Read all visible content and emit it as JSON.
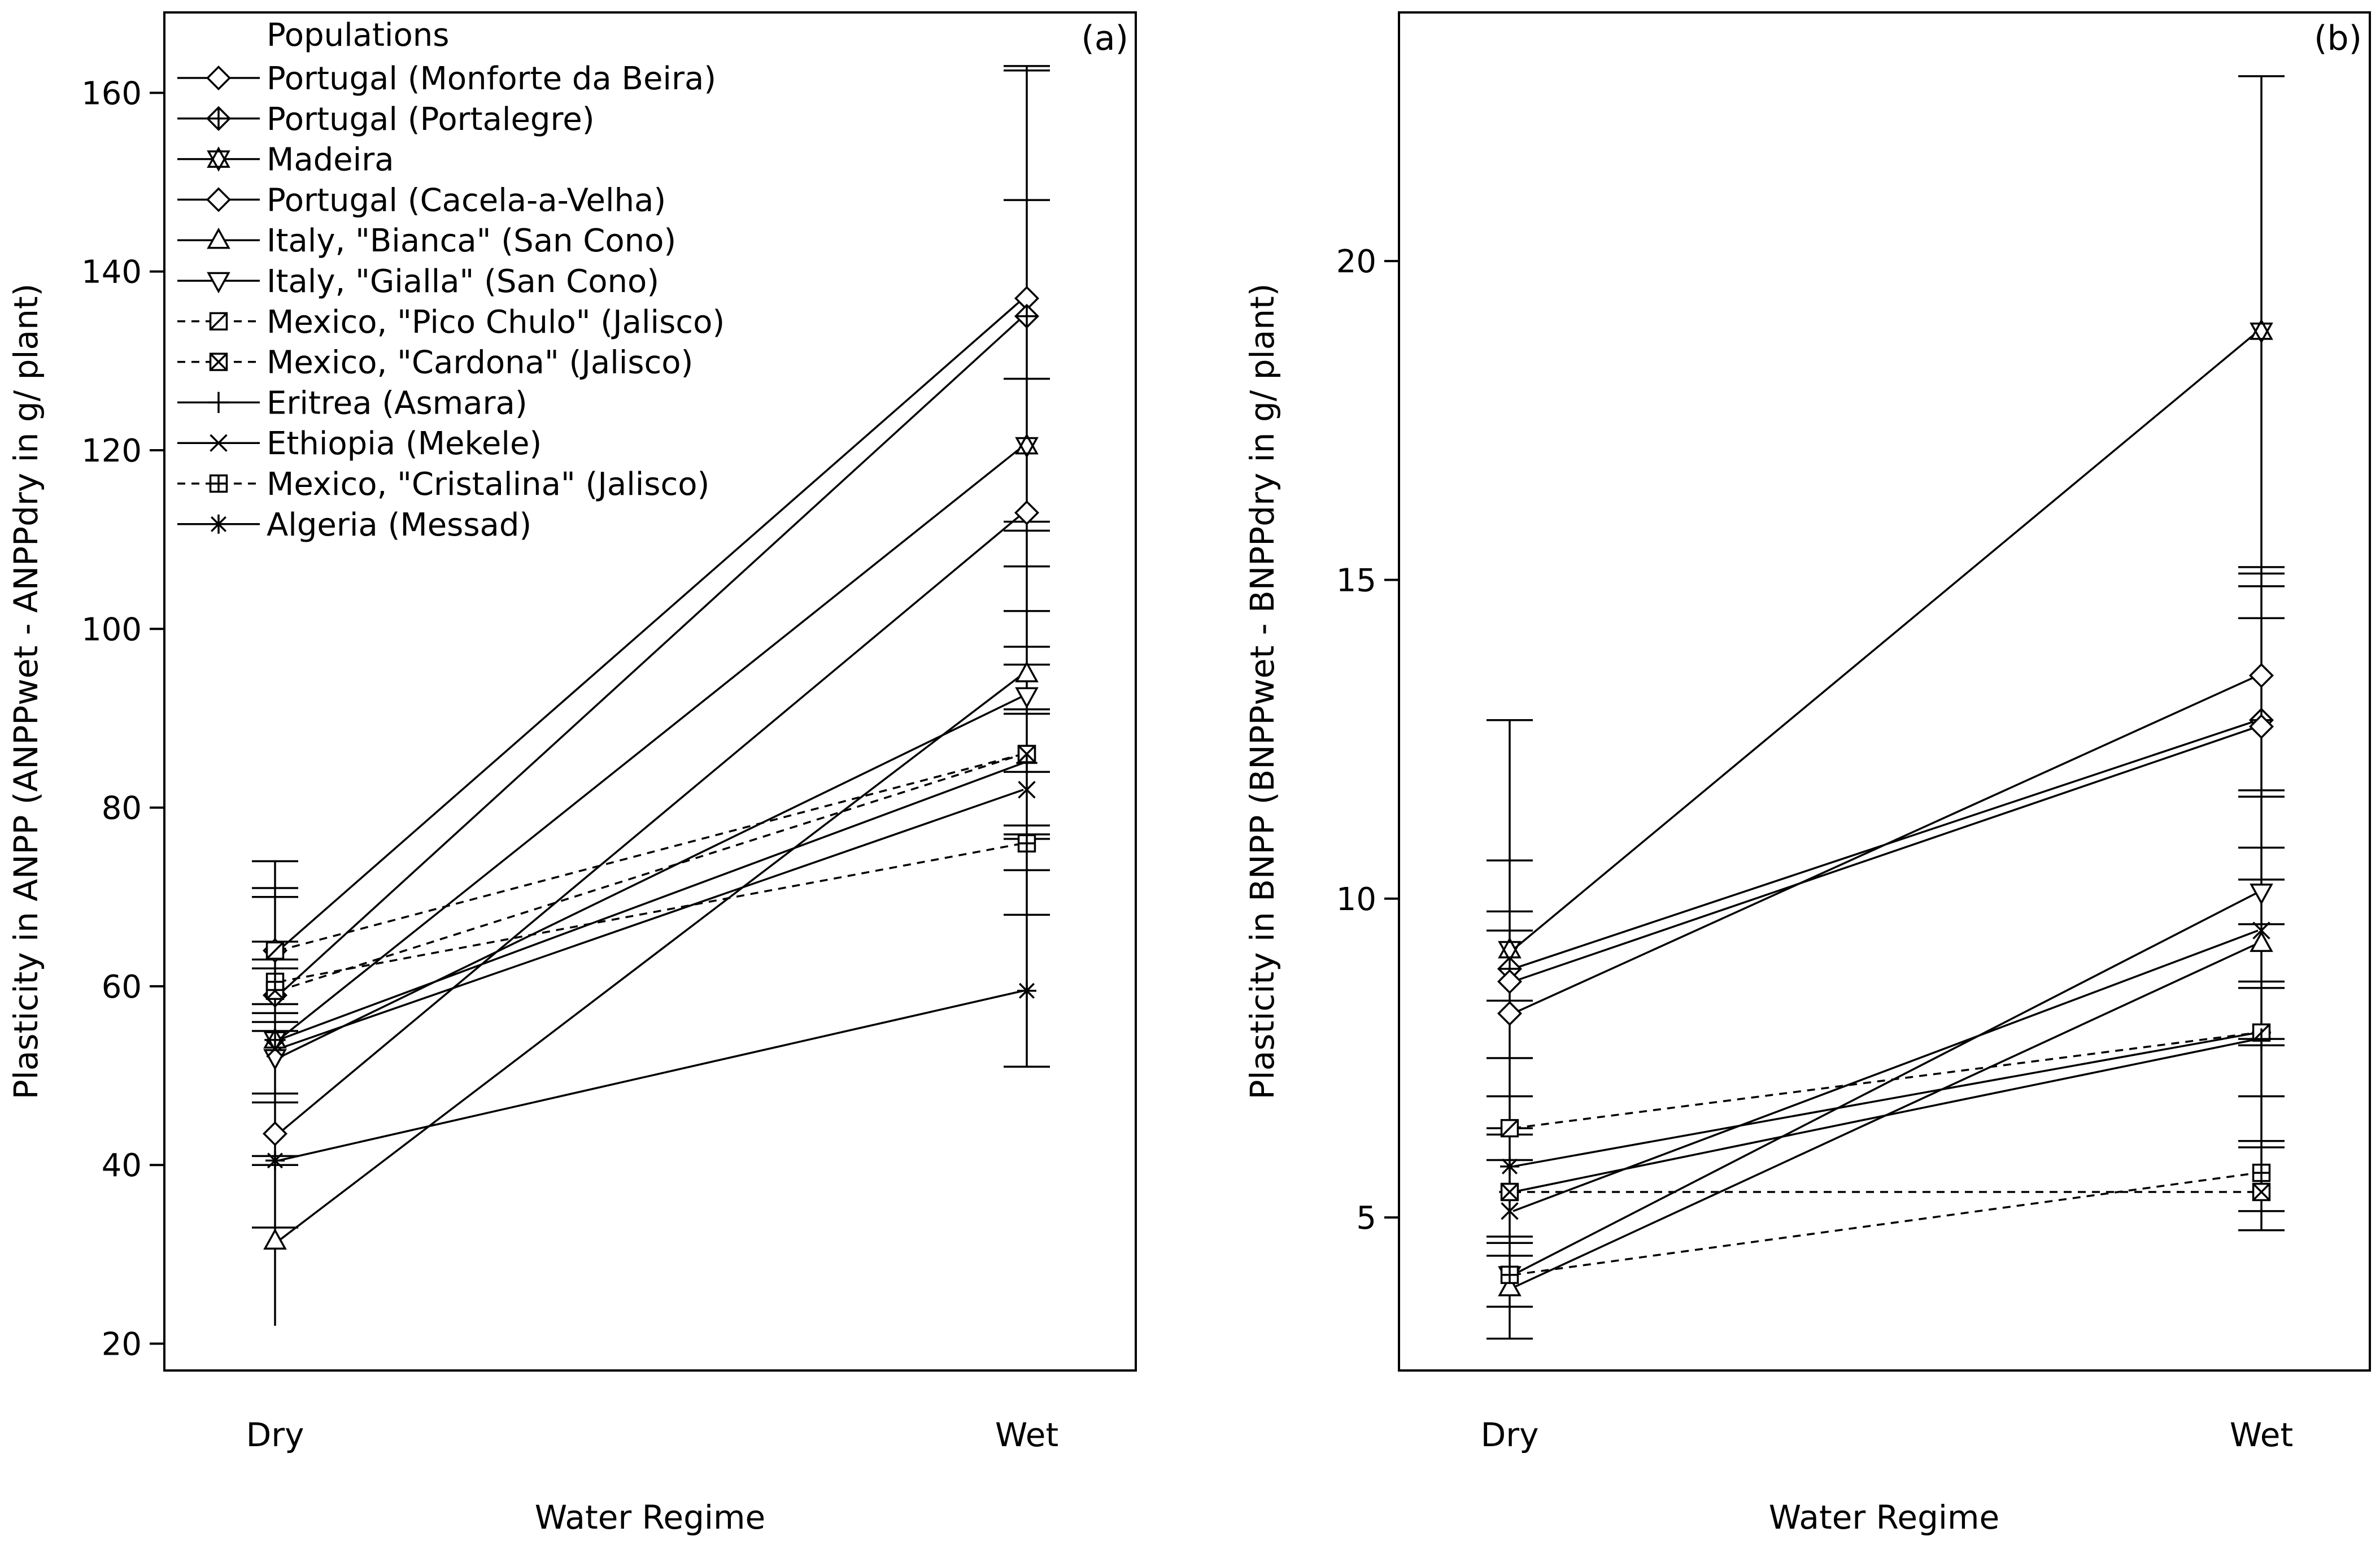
{
  "chart_data": [
    {
      "type": "line",
      "panel_label": "(a)",
      "xlabel": "Water Regime",
      "ylabel": "Plasticity in ANPP (ANPPwet - ANPPdry in g/ plant)",
      "categories": [
        "Dry",
        "Wet"
      ],
      "ylim": [
        17,
        169
      ],
      "yticks": [
        20,
        40,
        60,
        80,
        100,
        120,
        140,
        160
      ],
      "legend": {
        "title": "Populations",
        "position": "top-left",
        "entries": [
          {
            "name": "Portugal (Monforte da Beira)",
            "marker": "diamond",
            "dash": "solid"
          },
          {
            "name": "Portugal (Portalegre)",
            "marker": "diamond-plus",
            "dash": "solid"
          },
          {
            "name": "Madeira",
            "marker": "star-of-david",
            "dash": "solid"
          },
          {
            "name": "Portugal (Cacela-a-Velha)",
            "marker": "diamond",
            "dash": "solid"
          },
          {
            "name": "Italy, \"Bianca\" (San Cono)",
            "marker": "triangle-up",
            "dash": "solid"
          },
          {
            "name": "Italy, \"Gialla\" (San Cono)",
            "marker": "triangle-down",
            "dash": "solid"
          },
          {
            "name": "Mexico, \"Pico Chulo\" (Jalisco)",
            "marker": "square-slash",
            "dash": "dashed"
          },
          {
            "name": "Mexico, \"Cardona\" (Jalisco)",
            "marker": "square-x",
            "dash": "dashed"
          },
          {
            "name": "Eritrea (Asmara)",
            "marker": "plus",
            "dash": "solid"
          },
          {
            "name": "Ethiopia (Mekele)",
            "marker": "x",
            "dash": "solid"
          },
          {
            "name": "Mexico, \"Cristalina\" (Jalisco)",
            "marker": "square-plus",
            "dash": "dashed"
          },
          {
            "name": "Algeria (Messad)",
            "marker": "asterisk",
            "dash": "solid"
          }
        ]
      },
      "series": [
        {
          "name": "Portugal (Monforte da Beira)",
          "values": [
            64,
            137
          ]
        },
        {
          "name": "Portugal (Portalegre)",
          "values": [
            59,
            135
          ]
        },
        {
          "name": "Madeira",
          "values": [
            54,
            120.5
          ]
        },
        {
          "name": "Portugal (Cacela-a-Velha)",
          "values": [
            43.5,
            113
          ]
        },
        {
          "name": "Italy, \"Bianca\" (San Cono)",
          "values": [
            31.5,
            95
          ]
        },
        {
          "name": "Italy, \"Gialla\" (San Cono)",
          "values": [
            52,
            92.5
          ]
        },
        {
          "name": "Mexico, \"Pico Chulo\" (Jalisco)",
          "values": [
            64,
            86
          ]
        },
        {
          "name": "Mexico, \"Cardona\" (Jalisco)",
          "values": [
            59.5,
            86
          ]
        },
        {
          "name": "Eritrea (Asmara)",
          "values": [
            54,
            85
          ]
        },
        {
          "name": "Ethiopia (Mekele)",
          "values": [
            53,
            82
          ]
        },
        {
          "name": "Mexico, \"Cristalina\" (Jalisco)",
          "values": [
            60.5,
            76
          ]
        },
        {
          "name": "Algeria (Messad)",
          "values": [
            40.5,
            59.5
          ]
        }
      ],
      "error_bars": [
        {
          "category": "Dry",
          "low": 22,
          "high": 74
        },
        {
          "category": "Wet",
          "low": 51,
          "high": 163
        }
      ],
      "error_caps": {
        "Dry": [
          74,
          71,
          70,
          65,
          63,
          62,
          58,
          57,
          56,
          55,
          48,
          47,
          41,
          40,
          33
        ],
        "Wet": [
          163,
          162.5,
          148,
          128,
          112,
          111,
          107,
          102,
          98,
          96,
          91,
          90.5,
          84,
          78,
          77,
          76.5,
          73,
          68,
          51
        ]
      }
    },
    {
      "type": "line",
      "panel_label": "(b)",
      "xlabel": "Water Regime",
      "ylabel": "Plasticity in BNPP (BNPPwet - BNPPdry in g/ plant)",
      "categories": [
        "Dry",
        "Wet"
      ],
      "ylim": [
        2.6,
        23.9
      ],
      "yticks": [
        5,
        10,
        15,
        20
      ],
      "series": [
        {
          "name": "Madeira",
          "values": [
            9.2,
            18.9
          ]
        },
        {
          "name": "Portugal (Monforte da Beira)",
          "values": [
            8.2,
            13.5
          ]
        },
        {
          "name": "Portugal (Portalegre)",
          "values": [
            8.9,
            12.8
          ]
        },
        {
          "name": "Portugal (Cacela-a-Velha)",
          "values": [
            8.7,
            12.7
          ]
        },
        {
          "name": "Italy, \"Gialla\" (San Cono)",
          "values": [
            4.1,
            10.1
          ]
        },
        {
          "name": "Ethiopia (Mekele)",
          "values": [
            5.1,
            9.5
          ]
        },
        {
          "name": "Italy, \"Bianca\" (San Cono)",
          "values": [
            3.9,
            9.3
          ]
        },
        {
          "name": "Algeria (Messad)",
          "values": [
            5.8,
            7.9
          ]
        },
        {
          "name": "Mexico, \"Pico Chulo\" (Jalisco)",
          "values": [
            6.4,
            7.9
          ]
        },
        {
          "name": "Eritrea (Asmara)",
          "values": [
            5.4,
            7.8
          ]
        },
        {
          "name": "Mexico, \"Cristalina\" (Jalisco)",
          "values": [
            4.1,
            5.7
          ]
        },
        {
          "name": "Mexico, \"Cardona\" (Jalisco)",
          "values": [
            5.4,
            5.4
          ]
        }
      ],
      "error_bars": [
        {
          "category": "Dry",
          "low": 3.1,
          "high": 12.8
        },
        {
          "category": "Wet",
          "low": 4.8,
          "high": 22.9
        }
      ],
      "error_caps": {
        "Dry": [
          12.8,
          10.6,
          9.8,
          9.5,
          8.4,
          7.5,
          6.9,
          6.4,
          6.3,
          5.9,
          4.7,
          4.6,
          4.4,
          3.6,
          3.1
        ],
        "Wet": [
          22.9,
          15.2,
          15.1,
          14.9,
          14.4,
          11.7,
          11.6,
          10.8,
          10.3,
          9.6,
          8.7,
          8.6,
          7.8,
          7.7,
          6.9,
          6.2,
          6.1,
          5.1,
          4.8
        ]
      }
    }
  ]
}
